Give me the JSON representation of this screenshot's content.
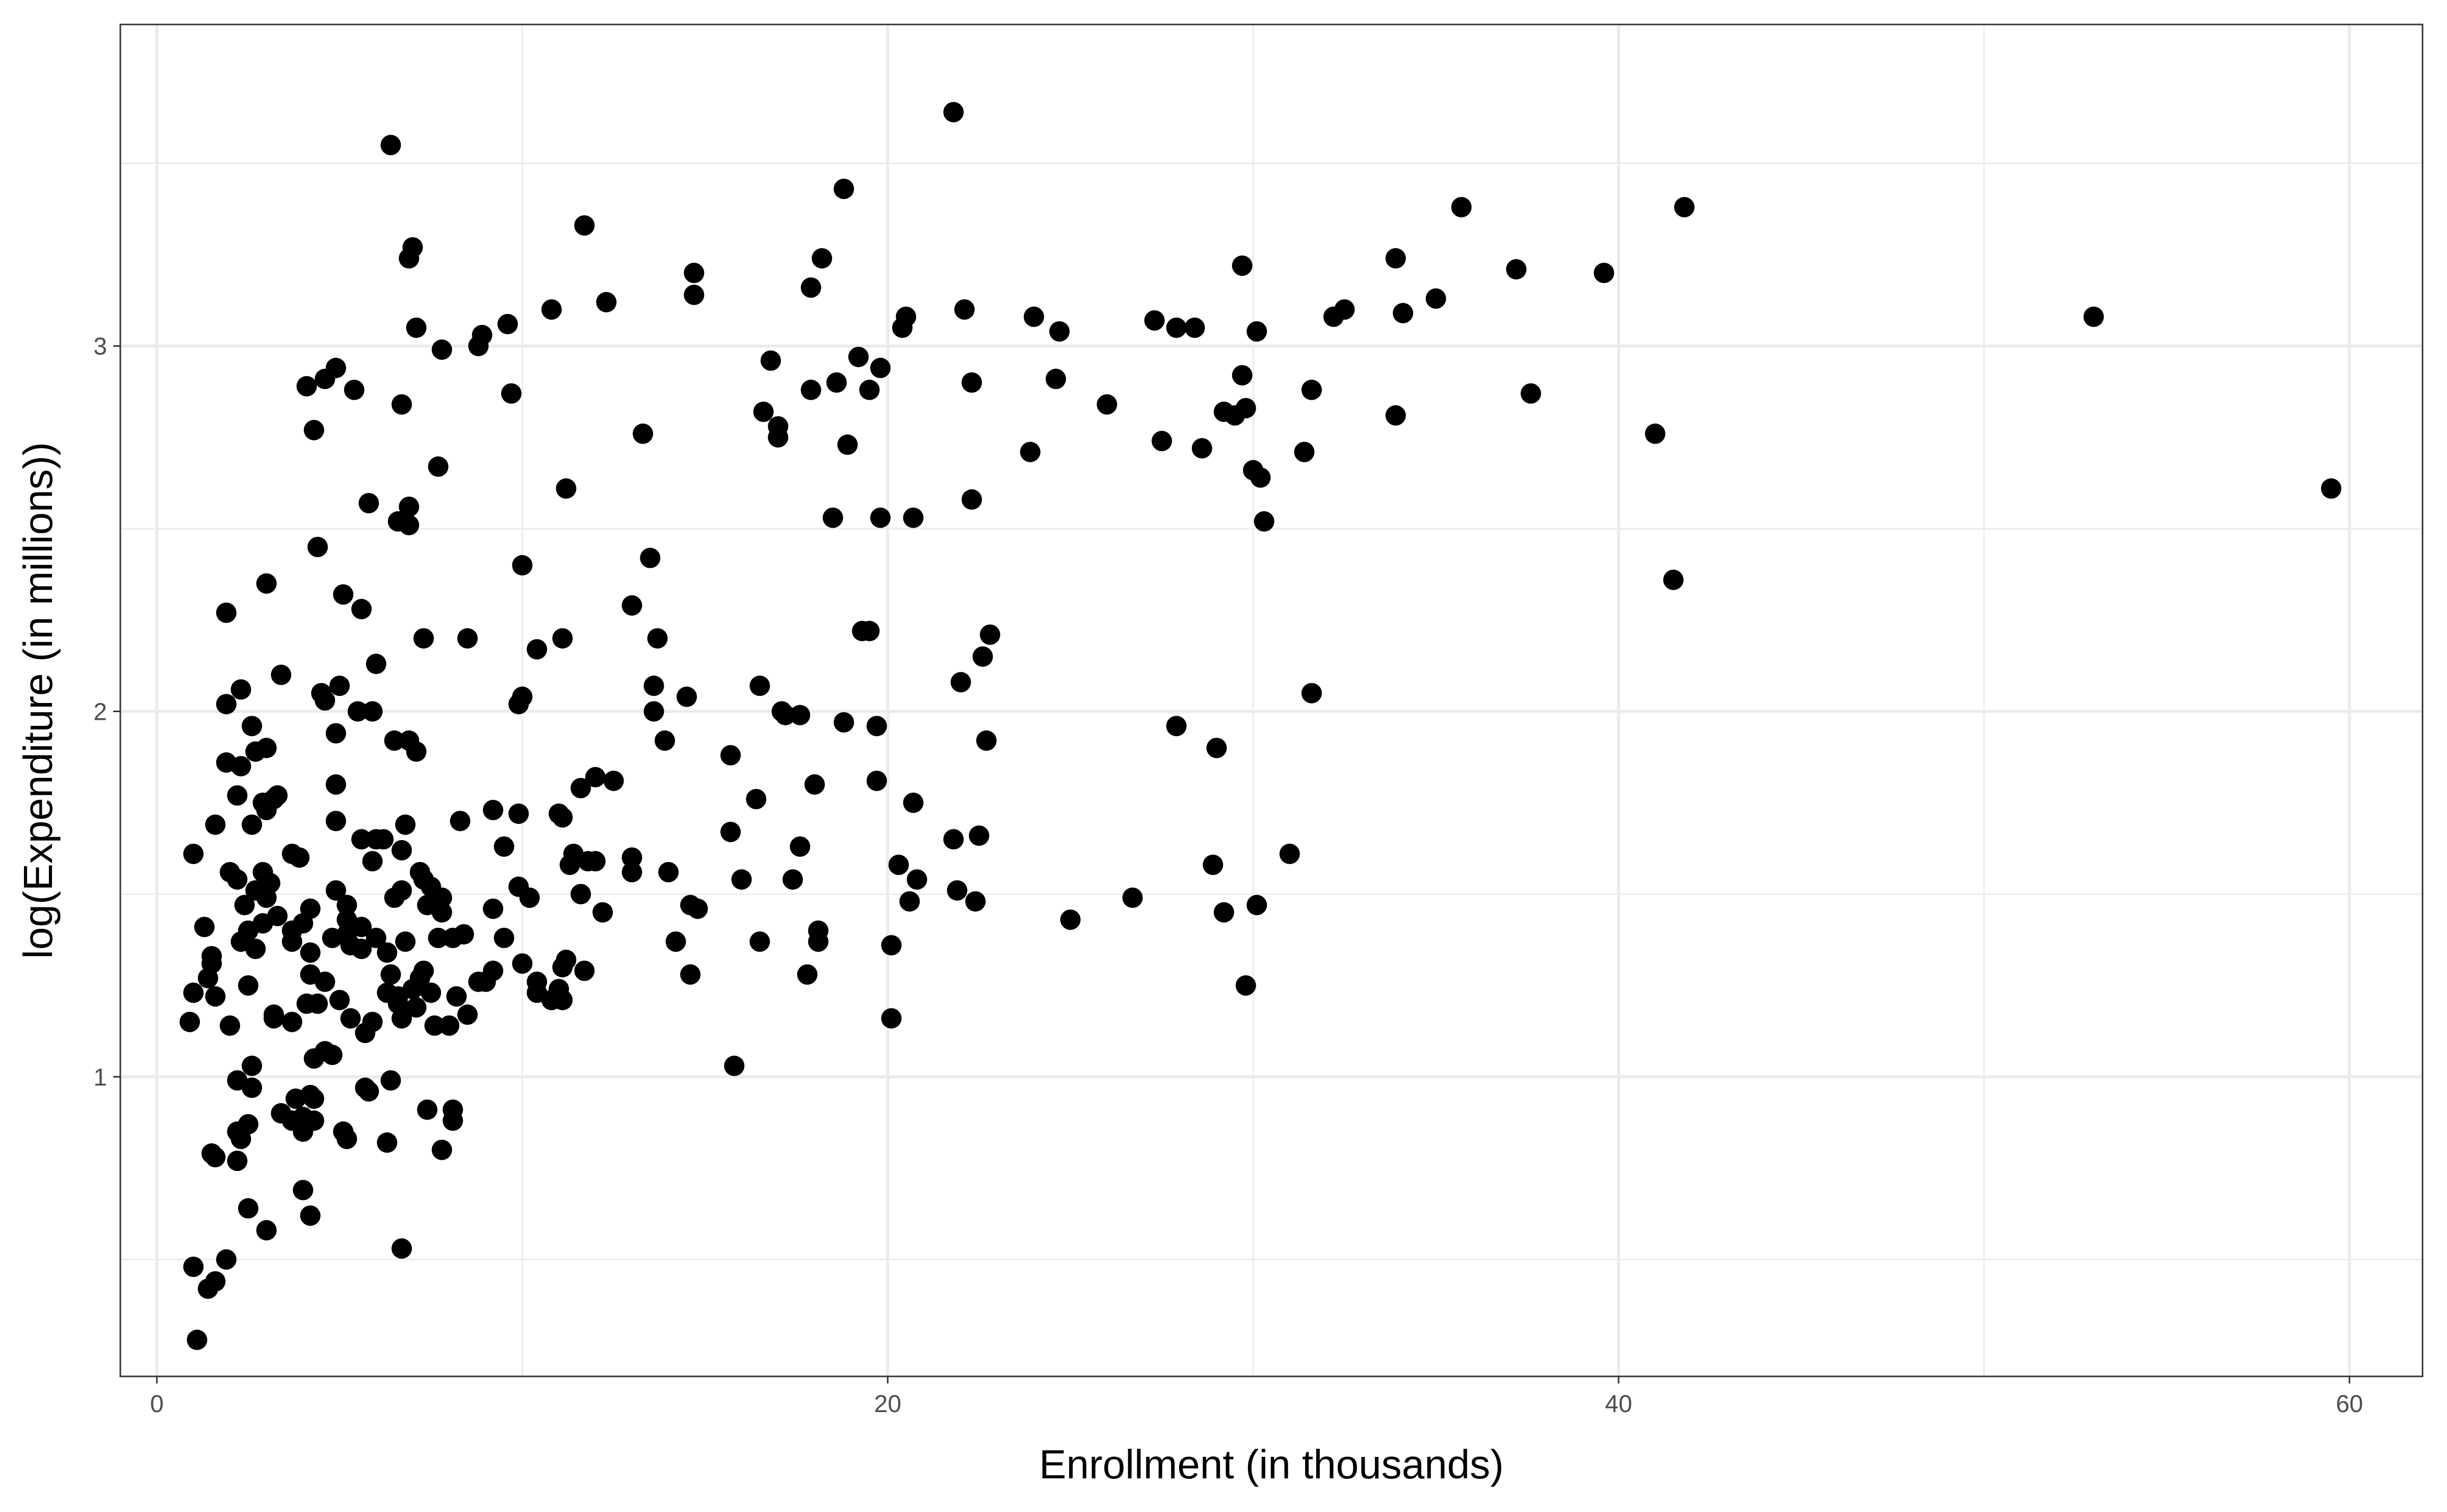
{
  "chart_data": {
    "type": "scatter",
    "title": "",
    "xlabel": "Enrollment (in thousands)",
    "ylabel": "log(Expenditure (in millions))",
    "xlim": [
      -1.0,
      62.0
    ],
    "ylim": [
      0.18,
      3.88
    ],
    "xticks": [
      0,
      20,
      40,
      60
    ],
    "xtick_labels": [
      "0",
      "20",
      "40",
      "60"
    ],
    "yticks": [
      1,
      2,
      3
    ],
    "ytick_labels": [
      "1",
      "2",
      "3"
    ],
    "grid": true,
    "legend": "none",
    "colors": {
      "point": "#000000",
      "grid": "#ebebeb",
      "panel_border": "#333333",
      "background": "#ffffff"
    },
    "points": [
      [
        21.8,
        3.64
      ],
      [
        6.4,
        3.55
      ],
      [
        18.8,
        3.43
      ],
      [
        41.8,
        3.38
      ],
      [
        35.7,
        3.38
      ],
      [
        11.7,
        3.33
      ],
      [
        7.0,
        3.27
      ],
      [
        6.9,
        3.24
      ],
      [
        18.2,
        3.24
      ],
      [
        33.9,
        3.24
      ],
      [
        37.2,
        3.21
      ],
      [
        29.7,
        3.22
      ],
      [
        39.6,
        3.2
      ],
      [
        14.7,
        3.2
      ],
      [
        12.3,
        3.12
      ],
      [
        35.0,
        3.13
      ],
      [
        14.7,
        3.14
      ],
      [
        17.9,
        3.16
      ],
      [
        10.8,
        3.1
      ],
      [
        32.5,
        3.1
      ],
      [
        22.1,
        3.1
      ],
      [
        20.5,
        3.08
      ],
      [
        24.0,
        3.08
      ],
      [
        34.1,
        3.09
      ],
      [
        53.0,
        3.08
      ],
      [
        32.2,
        3.08
      ],
      [
        20.4,
        3.05
      ],
      [
        27.3,
        3.07
      ],
      [
        9.6,
        3.06
      ],
      [
        27.9,
        3.05
      ],
      [
        24.7,
        3.04
      ],
      [
        28.4,
        3.05
      ],
      [
        30.1,
        3.04
      ],
      [
        7.1,
        3.05
      ],
      [
        8.9,
        3.03
      ],
      [
        8.8,
        3.0
      ],
      [
        7.8,
        2.99
      ],
      [
        16.8,
        2.96
      ],
      [
        19.2,
        2.97
      ],
      [
        19.8,
        2.94
      ],
      [
        4.9,
        2.94
      ],
      [
        29.7,
        2.92
      ],
      [
        24.6,
        2.91
      ],
      [
        4.6,
        2.91
      ],
      [
        22.3,
        2.9
      ],
      [
        18.6,
        2.9
      ],
      [
        4.1,
        2.89
      ],
      [
        5.4,
        2.88
      ],
      [
        17.9,
        2.88
      ],
      [
        19.5,
        2.88
      ],
      [
        31.6,
        2.88
      ],
      [
        9.7,
        2.87
      ],
      [
        37.6,
        2.87
      ],
      [
        6.7,
        2.84
      ],
      [
        16.6,
        2.82
      ],
      [
        26.0,
        2.84
      ],
      [
        29.8,
        2.83
      ],
      [
        29.2,
        2.82
      ],
      [
        29.5,
        2.81
      ],
      [
        33.9,
        2.81
      ],
      [
        17.0,
        2.78
      ],
      [
        4.3,
        2.77
      ],
      [
        13.3,
        2.76
      ],
      [
        41.0,
        2.76
      ],
      [
        17.0,
        2.75
      ],
      [
        27.5,
        2.74
      ],
      [
        18.9,
        2.73
      ],
      [
        23.9,
        2.71
      ],
      [
        28.6,
        2.72
      ],
      [
        31.4,
        2.71
      ],
      [
        7.7,
        2.67
      ],
      [
        30.0,
        2.66
      ],
      [
        30.2,
        2.64
      ],
      [
        59.5,
        2.61
      ],
      [
        11.2,
        2.61
      ],
      [
        22.3,
        2.58
      ],
      [
        5.8,
        2.57
      ],
      [
        6.9,
        2.56
      ],
      [
        18.5,
        2.53
      ],
      [
        19.8,
        2.53
      ],
      [
        20.7,
        2.53
      ],
      [
        6.6,
        2.52
      ],
      [
        6.9,
        2.51
      ],
      [
        30.3,
        2.52
      ],
      [
        4.4,
        2.45
      ],
      [
        13.5,
        2.42
      ],
      [
        10.0,
        2.4
      ],
      [
        41.5,
        2.36
      ],
      [
        3.0,
        2.35
      ],
      [
        5.1,
        2.32
      ],
      [
        13.0,
        2.29
      ],
      [
        5.6,
        2.28
      ],
      [
        1.9,
        2.27
      ],
      [
        19.3,
        2.22
      ],
      [
        19.5,
        2.22
      ],
      [
        7.3,
        2.2
      ],
      [
        8.5,
        2.2
      ],
      [
        11.1,
        2.2
      ],
      [
        13.7,
        2.2
      ],
      [
        22.8,
        2.21
      ],
      [
        10.4,
        2.17
      ],
      [
        22.6,
        2.15
      ],
      [
        6.0,
        2.13
      ],
      [
        3.4,
        2.1
      ],
      [
        22.0,
        2.08
      ],
      [
        5.0,
        2.07
      ],
      [
        2.3,
        2.06
      ],
      [
        13.6,
        2.07
      ],
      [
        16.5,
        2.07
      ],
      [
        4.5,
        2.05
      ],
      [
        14.5,
        2.04
      ],
      [
        10.0,
        2.04
      ],
      [
        31.6,
        2.05
      ],
      [
        1.9,
        2.02
      ],
      [
        4.6,
        2.03
      ],
      [
        9.9,
        2.02
      ],
      [
        17.1,
        2.0
      ],
      [
        5.5,
        2.0
      ],
      [
        5.9,
        2.0
      ],
      [
        13.6,
        2.0
      ],
      [
        17.2,
        1.99
      ],
      [
        17.6,
        1.99
      ],
      [
        2.6,
        1.96
      ],
      [
        18.8,
        1.97
      ],
      [
        19.7,
        1.96
      ],
      [
        27.9,
        1.96
      ],
      [
        4.9,
        1.94
      ],
      [
        13.9,
        1.92
      ],
      [
        6.5,
        1.92
      ],
      [
        6.9,
        1.92
      ],
      [
        22.7,
        1.92
      ],
      [
        3.0,
        1.9
      ],
      [
        2.7,
        1.89
      ],
      [
        29.0,
        1.9
      ],
      [
        7.1,
        1.89
      ],
      [
        15.7,
        1.88
      ],
      [
        1.9,
        1.86
      ],
      [
        2.3,
        1.85
      ],
      [
        12.0,
        1.82
      ],
      [
        12.5,
        1.81
      ],
      [
        19.7,
        1.81
      ],
      [
        4.9,
        1.8
      ],
      [
        18.0,
        1.8
      ],
      [
        11.6,
        1.79
      ],
      [
        2.2,
        1.77
      ],
      [
        3.3,
        1.77
      ],
      [
        3.2,
        1.76
      ],
      [
        16.4,
        1.76
      ],
      [
        2.9,
        1.75
      ],
      [
        20.7,
        1.75
      ],
      [
        3.0,
        1.73
      ],
      [
        9.2,
        1.73
      ],
      [
        9.9,
        1.72
      ],
      [
        11.0,
        1.72
      ],
      [
        4.9,
        1.7
      ],
      [
        1.6,
        1.69
      ],
      [
        2.6,
        1.69
      ],
      [
        8.3,
        1.7
      ],
      [
        6.8,
        1.69
      ],
      [
        15.7,
        1.67
      ],
      [
        11.1,
        1.71
      ],
      [
        22.5,
        1.66
      ],
      [
        5.6,
        1.65
      ],
      [
        6.0,
        1.65
      ],
      [
        6.2,
        1.65
      ],
      [
        21.8,
        1.65
      ],
      [
        9.5,
        1.63
      ],
      [
        17.6,
        1.63
      ],
      [
        3.7,
        1.61
      ],
      [
        1.0,
        1.61
      ],
      [
        6.7,
        1.62
      ],
      [
        11.4,
        1.61
      ],
      [
        31.0,
        1.61
      ],
      [
        3.9,
        1.6
      ],
      [
        11.8,
        1.59
      ],
      [
        12.0,
        1.59
      ],
      [
        5.9,
        1.59
      ],
      [
        13.0,
        1.6
      ],
      [
        11.3,
        1.58
      ],
      [
        20.3,
        1.58
      ],
      [
        2.0,
        1.56
      ],
      [
        2.9,
        1.56
      ],
      [
        7.2,
        1.56
      ],
      [
        13.0,
        1.56
      ],
      [
        14.0,
        1.56
      ],
      [
        28.9,
        1.58
      ],
      [
        2.2,
        1.54
      ],
      [
        17.4,
        1.54
      ],
      [
        3.1,
        1.53
      ],
      [
        7.3,
        1.54
      ],
      [
        7.5,
        1.52
      ],
      [
        16.0,
        1.54
      ],
      [
        20.8,
        1.54
      ],
      [
        2.7,
        1.51
      ],
      [
        4.9,
        1.51
      ],
      [
        6.7,
        1.51
      ],
      [
        21.9,
        1.51
      ],
      [
        9.9,
        1.52
      ],
      [
        11.6,
        1.5
      ],
      [
        3.0,
        1.49
      ],
      [
        5.2,
        1.47
      ],
      [
        6.5,
        1.49
      ],
      [
        10.2,
        1.49
      ],
      [
        7.4,
        1.47
      ],
      [
        7.8,
        1.49
      ],
      [
        14.6,
        1.47
      ],
      [
        20.6,
        1.48
      ],
      [
        26.7,
        1.49
      ],
      [
        2.4,
        1.47
      ],
      [
        4.2,
        1.46
      ],
      [
        9.2,
        1.46
      ],
      [
        14.8,
        1.46
      ],
      [
        22.4,
        1.48
      ],
      [
        7.8,
        1.45
      ],
      [
        12.2,
        1.45
      ],
      [
        29.2,
        1.45
      ],
      [
        30.1,
        1.47
      ],
      [
        3.3,
        1.44
      ],
      [
        5.2,
        1.43
      ],
      [
        2.9,
        1.42
      ],
      [
        5.6,
        1.41
      ],
      [
        25.0,
        1.43
      ],
      [
        4.0,
        1.42
      ],
      [
        3.7,
        1.4
      ],
      [
        1.3,
        1.41
      ],
      [
        2.5,
        1.4
      ],
      [
        5.2,
        1.39
      ],
      [
        6.0,
        1.38
      ],
      [
        7.7,
        1.38
      ],
      [
        8.4,
        1.39
      ],
      [
        18.1,
        1.4
      ],
      [
        6.8,
        1.37
      ],
      [
        4.8,
        1.38
      ],
      [
        2.3,
        1.37
      ],
      [
        14.2,
        1.37
      ],
      [
        16.5,
        1.37
      ],
      [
        18.1,
        1.37
      ],
      [
        9.5,
        1.38
      ],
      [
        8.1,
        1.38
      ],
      [
        2.7,
        1.35
      ],
      [
        5.3,
        1.36
      ],
      [
        5.6,
        1.35
      ],
      [
        3.7,
        1.37
      ],
      [
        4.2,
        1.34
      ],
      [
        20.1,
        1.36
      ],
      [
        1.5,
        1.33
      ],
      [
        1.5,
        1.31
      ],
      [
        6.3,
        1.34
      ],
      [
        11.2,
        1.32
      ],
      [
        7.3,
        1.29
      ],
      [
        11.1,
        1.3
      ],
      [
        9.2,
        1.29
      ],
      [
        10.0,
        1.31
      ],
      [
        14.6,
        1.28
      ],
      [
        11.7,
        1.29
      ],
      [
        17.8,
        1.28
      ],
      [
        1.4,
        1.27
      ],
      [
        4.2,
        1.28
      ],
      [
        6.4,
        1.28
      ],
      [
        10.4,
        1.26
      ],
      [
        4.6,
        1.26
      ],
      [
        8.8,
        1.26
      ],
      [
        9.0,
        1.26
      ],
      [
        2.5,
        1.25
      ],
      [
        7.2,
        1.27
      ],
      [
        11.0,
        1.24
      ],
      [
        7.0,
        1.24
      ],
      [
        6.3,
        1.23
      ],
      [
        8.2,
        1.22
      ],
      [
        10.4,
        1.23
      ],
      [
        1.0,
        1.23
      ],
      [
        1.6,
        1.22
      ],
      [
        7.5,
        1.23
      ],
      [
        6.6,
        1.22
      ],
      [
        10.8,
        1.21
      ],
      [
        6.6,
        1.2
      ],
      [
        4.1,
        1.2
      ],
      [
        11.1,
        1.21
      ],
      [
        29.8,
        1.25
      ],
      [
        5.0,
        1.21
      ],
      [
        7.1,
        1.19
      ],
      [
        3.2,
        1.17
      ],
      [
        4.4,
        1.2
      ],
      [
        6.7,
        1.16
      ],
      [
        3.7,
        1.15
      ],
      [
        5.3,
        1.16
      ],
      [
        8.5,
        1.17
      ],
      [
        3.2,
        1.16
      ],
      [
        0.9,
        1.15
      ],
      [
        2.0,
        1.14
      ],
      [
        5.9,
        1.15
      ],
      [
        7.6,
        1.14
      ],
      [
        8.0,
        1.14
      ],
      [
        20.1,
        1.16
      ],
      [
        5.7,
        1.12
      ],
      [
        4.6,
        1.07
      ],
      [
        4.3,
        1.05
      ],
      [
        4.8,
        1.06
      ],
      [
        2.6,
        1.03
      ],
      [
        15.8,
        1.03
      ],
      [
        6.4,
        0.99
      ],
      [
        2.2,
        0.99
      ],
      [
        2.6,
        0.97
      ],
      [
        5.7,
        0.97
      ],
      [
        5.8,
        0.96
      ],
      [
        3.8,
        0.94
      ],
      [
        4.2,
        0.95
      ],
      [
        4.3,
        0.94
      ],
      [
        7.4,
        0.91
      ],
      [
        8.1,
        0.91
      ],
      [
        3.4,
        0.9
      ],
      [
        3.7,
        0.88
      ],
      [
        4.0,
        0.89
      ],
      [
        4.3,
        0.88
      ],
      [
        4.0,
        0.85
      ],
      [
        8.1,
        0.88
      ],
      [
        2.5,
        0.87
      ],
      [
        2.2,
        0.85
      ],
      [
        5.1,
        0.85
      ],
      [
        2.3,
        0.83
      ],
      [
        5.2,
        0.83
      ],
      [
        6.3,
        0.82
      ],
      [
        7.8,
        0.8
      ],
      [
        1.5,
        0.79
      ],
      [
        1.6,
        0.78
      ],
      [
        2.2,
        0.77
      ],
      [
        4.0,
        0.69
      ],
      [
        2.5,
        0.64
      ],
      [
        4.2,
        0.62
      ],
      [
        3.0,
        0.58
      ],
      [
        6.7,
        0.53
      ],
      [
        1.0,
        0.48
      ],
      [
        1.9,
        0.5
      ],
      [
        1.6,
        0.44
      ],
      [
        1.4,
        0.42
      ],
      [
        1.1,
        0.28
      ]
    ]
  }
}
